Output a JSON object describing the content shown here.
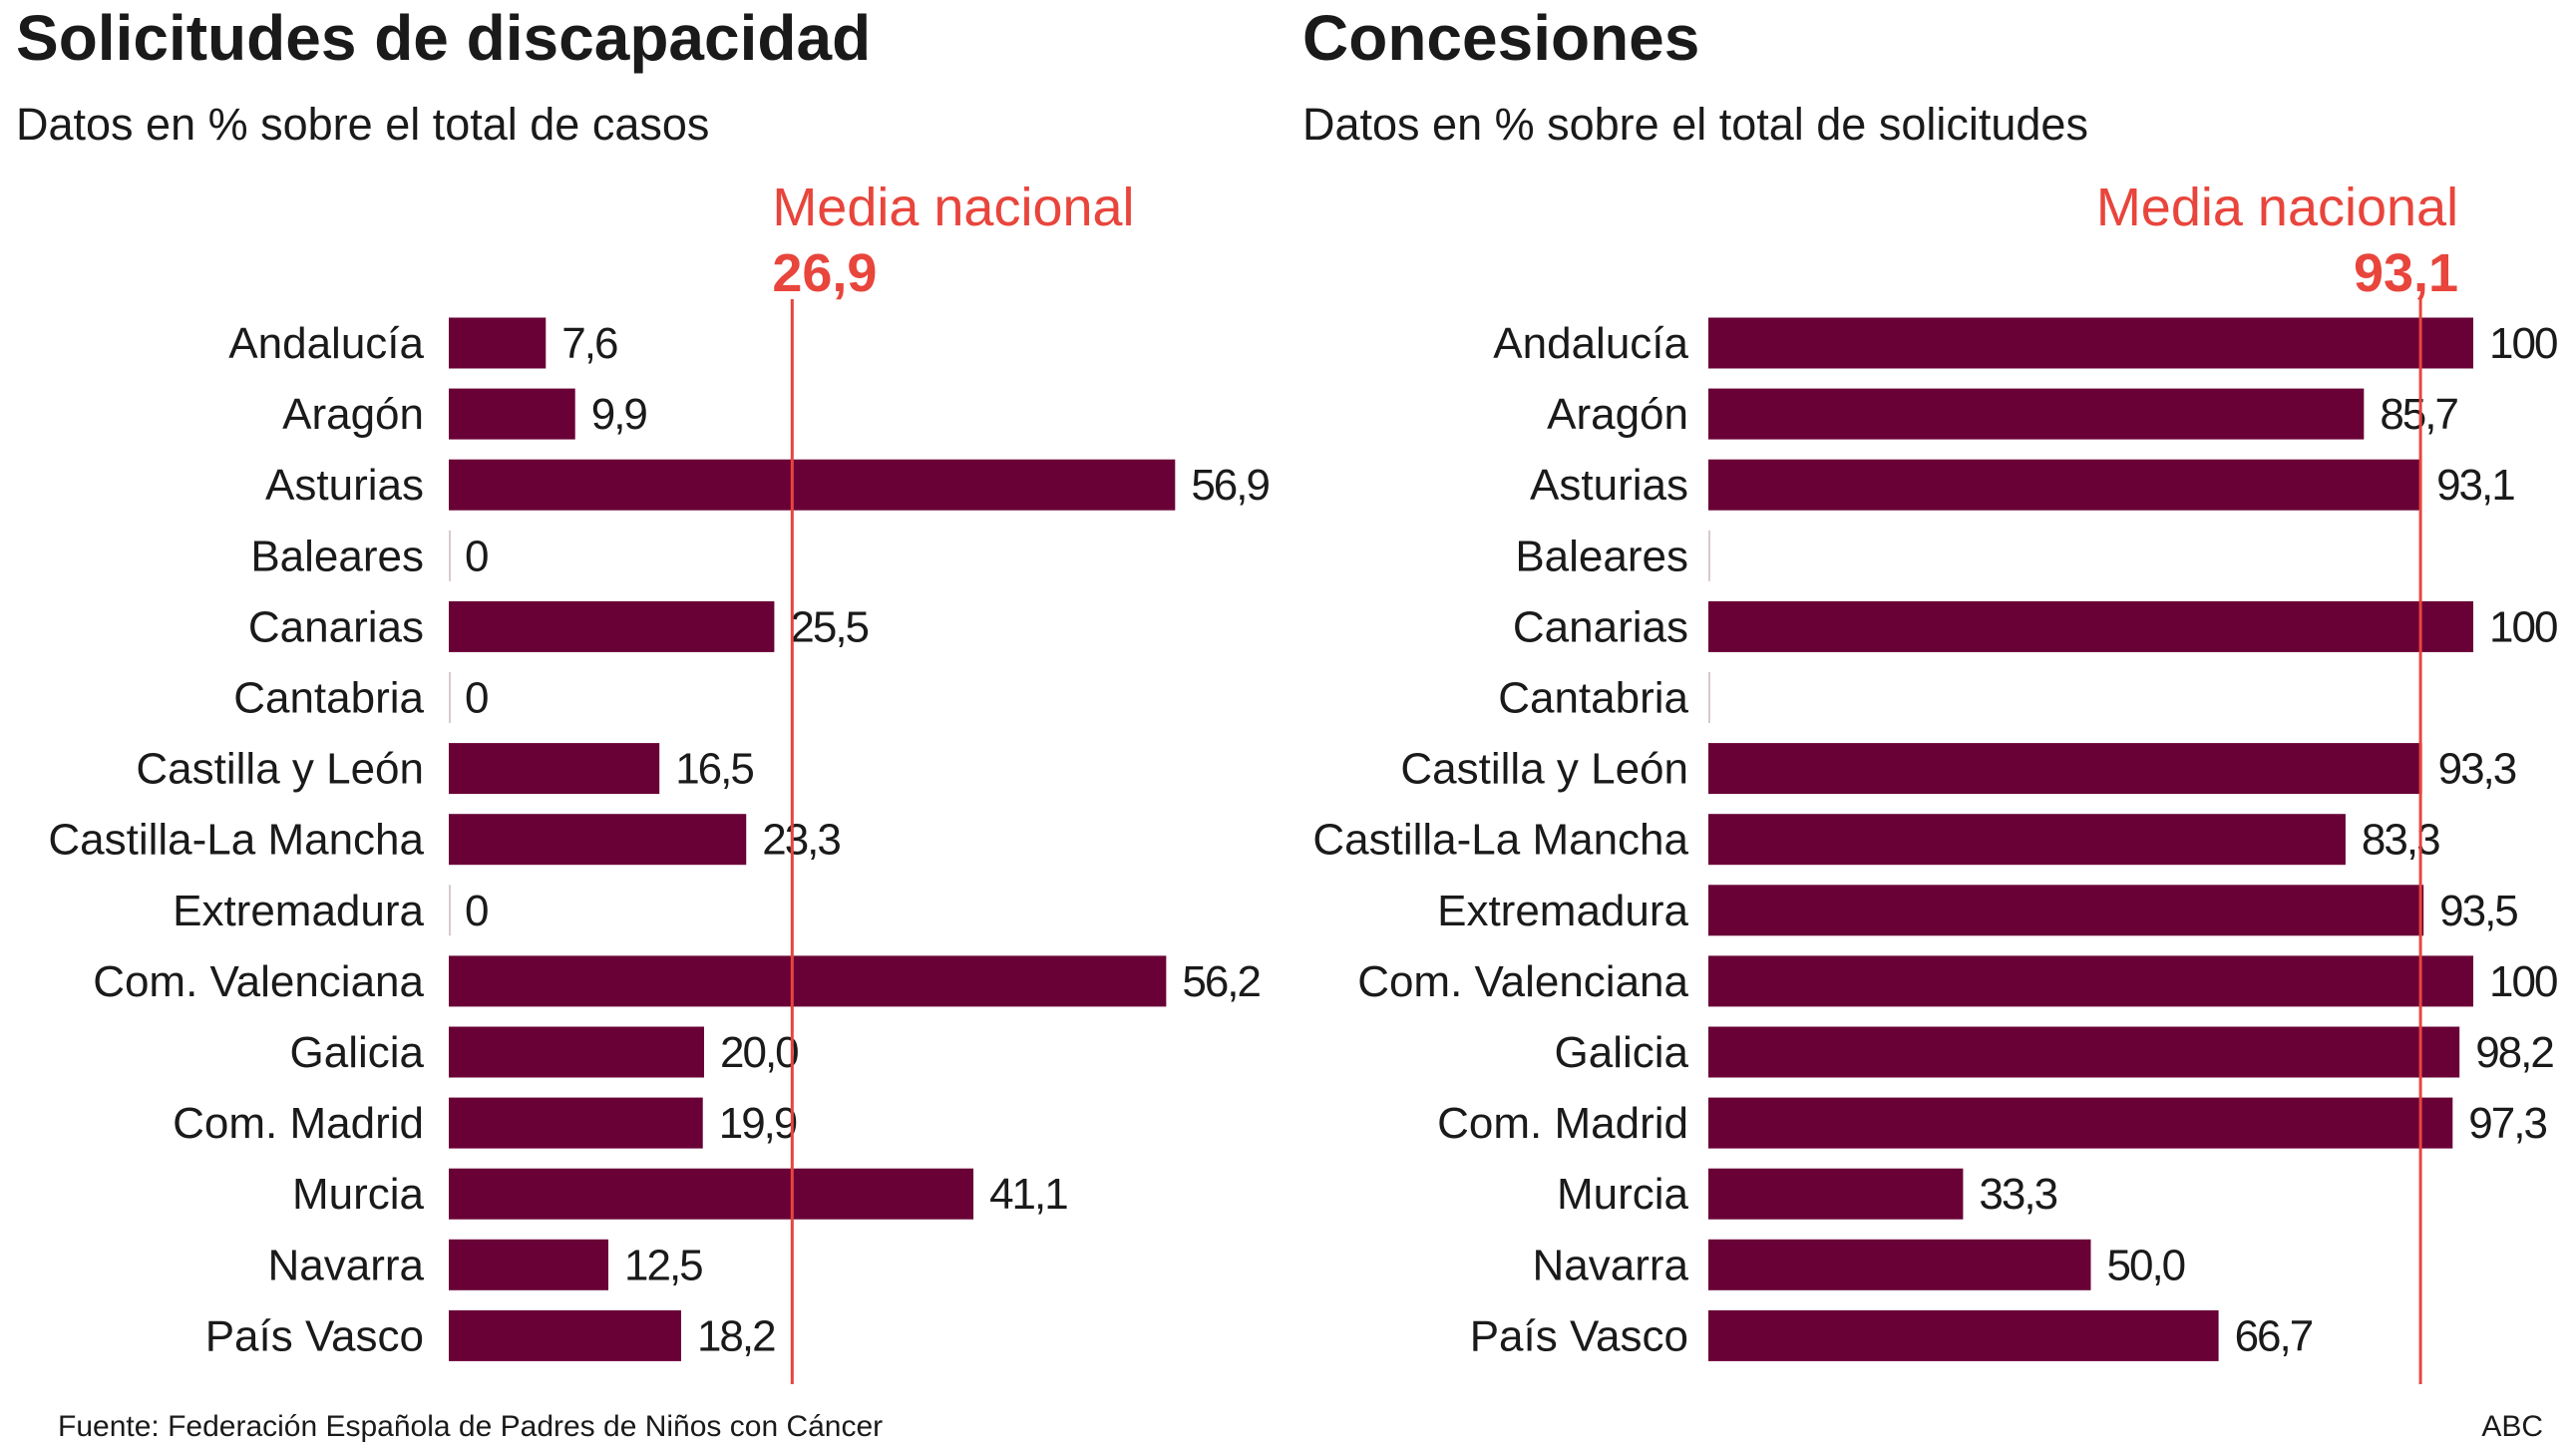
{
  "colors": {
    "bar": "#690036",
    "mean": "#e8453c",
    "text": "#1a1a1a"
  },
  "footer": {
    "source": "Fuente: Federación Española de Padres de Niños con Cáncer",
    "credit": "ABC"
  },
  "chart_data": [
    {
      "type": "bar",
      "orientation": "horizontal",
      "title": "Solicitudes de discapacidad",
      "subtitle": "Datos en % sobre el total de casos",
      "mean_label": "Media nacional",
      "mean_value": 26.9,
      "mean_text": "26,9",
      "categories": [
        "Andalucía",
        "Aragón",
        "Asturias",
        "Baleares",
        "Canarias",
        "Cantabria",
        "Castilla y León",
        "Castilla-La Mancha",
        "Extremadura",
        "Com. Valenciana",
        "Galicia",
        "Com. Madrid",
        "Murcia",
        "Navarra",
        "País Vasco"
      ],
      "values": [
        7.6,
        9.9,
        56.9,
        0,
        25.5,
        0,
        16.5,
        23.3,
        0,
        56.2,
        20.0,
        19.9,
        41.1,
        12.5,
        18.2
      ],
      "labels": [
        "7,6",
        "9,9",
        "56,9",
        "0",
        "25,5",
        "0",
        "16,5",
        "23,3",
        "0",
        "56,2",
        "20,0",
        "19,9",
        "41,1",
        "12,5",
        "18,2"
      ],
      "xlim": [
        0,
        60
      ]
    },
    {
      "type": "bar",
      "orientation": "horizontal",
      "title": "Concesiones",
      "subtitle": "Datos en % sobre el total de solicitudes",
      "mean_label": "Media nacional",
      "mean_value": 93.1,
      "mean_text": "93,1",
      "categories": [
        "Andalucía",
        "Aragón",
        "Asturias",
        "Baleares",
        "Canarias",
        "Cantabria",
        "Castilla y León",
        "Castilla-La Mancha",
        "Extremadura",
        "Com. Valenciana",
        "Galicia",
        "Com. Madrid",
        "Murcia",
        "Navarra",
        "País Vasco"
      ],
      "values": [
        100,
        85.7,
        93.1,
        null,
        100,
        null,
        93.3,
        83.3,
        93.5,
        100,
        98.2,
        97.3,
        33.3,
        50.0,
        66.7
      ],
      "labels": [
        "100",
        "85,7",
        "93,1",
        "",
        "100",
        "",
        "93,3",
        "83,3",
        "93,5",
        "100",
        "98,2",
        "97,3",
        "33,3",
        "50,0",
        "66,7"
      ],
      "xlim": [
        0,
        100
      ]
    }
  ]
}
